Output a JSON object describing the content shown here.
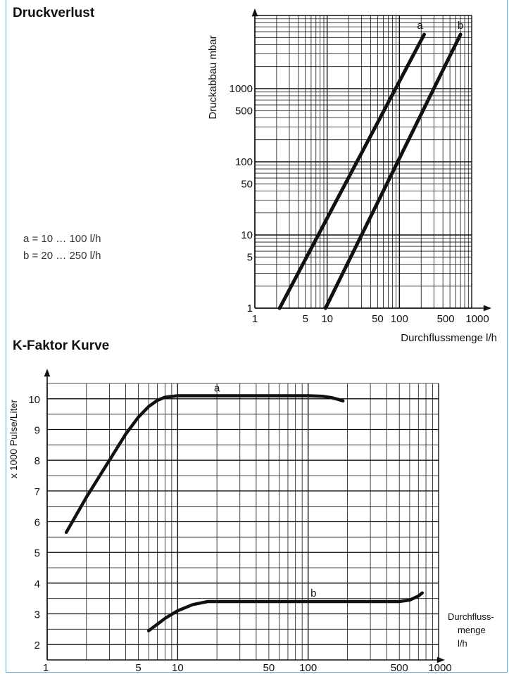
{
  "sections": {
    "pressure_title": "Druckverlust",
    "kfactor_title": "K-Faktor Kurve",
    "legend_a": "a = 10 … 100 l/h",
    "legend_b": "b = 20 … 250 l/h"
  },
  "colors": {
    "grid": "#111111",
    "curve": "#111111",
    "frame": "#6fa0c8"
  },
  "chart_data": [
    {
      "type": "line",
      "title": "Druckverlust",
      "xlabel": "Durchflussmenge l/h",
      "ylabel": "Druckabbau mbar",
      "xscale": "log",
      "yscale": "log",
      "xlim": [
        1,
        1000
      ],
      "ylim": [
        1,
        10000
      ],
      "x_ticks": [
        {
          "v": 1,
          "label": "1"
        },
        {
          "v": 5,
          "label": "5"
        },
        {
          "v": 10,
          "label": "10"
        },
        {
          "v": 50,
          "label": "50"
        },
        {
          "v": 100,
          "label": "100"
        },
        {
          "v": 500,
          "label": "500"
        },
        {
          "v": 1000,
          "label": "1000"
        }
      ],
      "y_ticks": [
        {
          "v": 1,
          "label": "1"
        },
        {
          "v": 5,
          "label": "5"
        },
        {
          "v": 10,
          "label": "10"
        },
        {
          "v": 50,
          "label": "50"
        },
        {
          "v": 100,
          "label": "100"
        },
        {
          "v": 500,
          "label": "500"
        },
        {
          "v": 1000,
          "label": "1000"
        }
      ],
      "series": [
        {
          "name": "a",
          "x": [
            2.2,
            220
          ],
          "y": [
            1,
            5500
          ]
        },
        {
          "name": "b",
          "x": [
            9.5,
            700
          ],
          "y": [
            1,
            5500
          ]
        }
      ],
      "grid": true
    },
    {
      "type": "line",
      "title": "K-Faktor Kurve",
      "xlabel": "Durchfluss-menge l/h",
      "ylabel": "x 1000 Pulse/Liter",
      "xscale": "log",
      "yscale": "linear",
      "xlim": [
        1,
        1000
      ],
      "ylim": [
        1.5,
        10.5
      ],
      "x_ticks": [
        {
          "v": 1,
          "label": "1"
        },
        {
          "v": 5,
          "label": "5"
        },
        {
          "v": 10,
          "label": "10"
        },
        {
          "v": 50,
          "label": "50"
        },
        {
          "v": 100,
          "label": "100"
        },
        {
          "v": 500,
          "label": "500"
        },
        {
          "v": 1000,
          "label": "1000"
        }
      ],
      "y_ticks": [
        {
          "v": 2,
          "label": "2"
        },
        {
          "v": 3,
          "label": "3"
        },
        {
          "v": 4,
          "label": "4"
        },
        {
          "v": 5,
          "label": "5"
        },
        {
          "v": 6,
          "label": "6"
        },
        {
          "v": 7,
          "label": "7"
        },
        {
          "v": 8,
          "label": "8"
        },
        {
          "v": 9,
          "label": "9"
        },
        {
          "v": 10,
          "label": "10"
        }
      ],
      "series": [
        {
          "name": "a",
          "x": [
            1.4,
            2,
            3,
            4,
            5,
            6,
            7,
            8,
            10,
            20,
            50,
            100,
            130,
            150,
            170,
            185
          ],
          "y": [
            5.65,
            6.8,
            8.0,
            8.85,
            9.4,
            9.75,
            9.95,
            10.05,
            10.1,
            10.1,
            10.1,
            10.1,
            10.08,
            10.04,
            9.98,
            9.93
          ]
        },
        {
          "name": "b",
          "x": [
            6,
            8,
            10,
            13,
            17,
            20,
            50,
            100,
            200,
            500,
            600,
            700,
            750
          ],
          "y": [
            2.45,
            2.85,
            3.1,
            3.3,
            3.4,
            3.4,
            3.4,
            3.4,
            3.4,
            3.4,
            3.45,
            3.58,
            3.68
          ]
        }
      ],
      "grid": true
    }
  ]
}
